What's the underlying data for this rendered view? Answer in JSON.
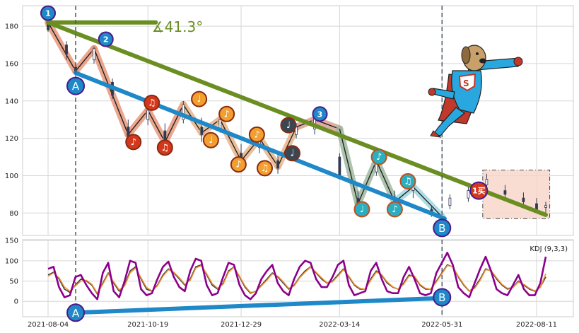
{
  "chart_data": [
    {
      "type": "candlestick",
      "ylim": [
        68,
        191
      ],
      "y_ticks": [
        80,
        100,
        120,
        140,
        160,
        180
      ],
      "grid": true,
      "candles": [
        {
          "date": "2021-08-04",
          "open": 181,
          "high": 183,
          "low": 177,
          "close": 178
        },
        {
          "date": "2021-08-18",
          "open": 170,
          "high": 172,
          "low": 162,
          "close": 165
        },
        {
          "date": "2021-08-25",
          "open": 158,
          "high": 160,
          "low": 153,
          "close": 155
        },
        {
          "date": "2021-09-08",
          "open": 162,
          "high": 169,
          "low": 160,
          "close": 168
        },
        {
          "date": "2021-09-22",
          "open": 150,
          "high": 152,
          "low": 141,
          "close": 143
        },
        {
          "date": "2021-10-04",
          "open": 126,
          "high": 130,
          "low": 118,
          "close": 121
        },
        {
          "date": "2021-10-19",
          "open": 130,
          "high": 138,
          "low": 127,
          "close": 135
        },
        {
          "date": "2021-11-01",
          "open": 124,
          "high": 128,
          "low": 115,
          "close": 118
        },
        {
          "date": "2021-11-15",
          "open": 130,
          "high": 140,
          "low": 128,
          "close": 138
        },
        {
          "date": "2021-11-29",
          "open": 126,
          "high": 131,
          "low": 118,
          "close": 122
        },
        {
          "date": "2021-12-13",
          "open": 125,
          "high": 133,
          "low": 123,
          "close": 130
        },
        {
          "date": "2021-12-29",
          "open": 112,
          "high": 117,
          "low": 104,
          "close": 107
        },
        {
          "date": "2022-01-12",
          "open": 115,
          "high": 122,
          "low": 112,
          "close": 120
        },
        {
          "date": "2022-01-26",
          "open": 108,
          "high": 111,
          "low": 101,
          "close": 104
        },
        {
          "date": "2022-02-09",
          "open": 122,
          "high": 128,
          "low": 120,
          "close": 126
        },
        {
          "date": "2022-02-23",
          "open": 125,
          "high": 134,
          "low": 122,
          "close": 132
        },
        {
          "date": "2022-03-14",
          "open": 110,
          "high": 112,
          "low": 98,
          "close": 100
        },
        {
          "date": "2022-03-28",
          "open": 88,
          "high": 92,
          "low": 82,
          "close": 84
        },
        {
          "date": "2022-04-11",
          "open": 102,
          "high": 110,
          "low": 100,
          "close": 108
        },
        {
          "date": "2022-04-25",
          "open": 88,
          "high": 92,
          "low": 82,
          "close": 85
        },
        {
          "date": "2022-05-09",
          "open": 92,
          "high": 96,
          "low": 88,
          "close": 94
        },
        {
          "date": "2022-05-23",
          "open": 82,
          "high": 84,
          "low": 78,
          "close": 79
        },
        {
          "date": "2022-06-06",
          "open": 84,
          "high": 90,
          "low": 82,
          "close": 88
        },
        {
          "date": "2022-06-20",
          "open": 88,
          "high": 94,
          "low": 86,
          "close": 92
        },
        {
          "date": "2022-07-04",
          "open": 95,
          "high": 101,
          "low": 93,
          "close": 98
        },
        {
          "date": "2022-07-18",
          "open": 92,
          "high": 95,
          "low": 88,
          "close": 90
        },
        {
          "date": "2022-08-01",
          "open": 88,
          "high": 91,
          "low": 84,
          "close": 86
        },
        {
          "date": "2022-08-11",
          "open": 85,
          "high": 88,
          "low": 80,
          "close": 82
        },
        {
          "date": "2022-08-18",
          "open": 83,
          "high": 86,
          "low": 79,
          "close": 84
        }
      ],
      "trendlines": [
        {
          "color": "#6b8e23",
          "points": [
            {
              "x": "2021-08-04",
              "y": 182
            },
            {
              "x": "2022-08-18",
              "y": 79
            }
          ]
        },
        {
          "color": "#6b8e23",
          "points": [
            {
              "x": "2021-08-04",
              "y": 182
            },
            {
              "x": "2021-10-25",
              "y": 182
            }
          ]
        },
        {
          "color": "#1e88c8",
          "points": [
            {
              "x": "2021-08-25",
              "y": 155
            },
            {
              "x": "2022-06-02",
              "y": 77
            }
          ]
        }
      ],
      "angle_label": "∡41.3°",
      "wave_path": [
        {
          "x": "2021-08-04",
          "y": 182
        },
        {
          "x": "2021-08-25",
          "y": 156
        },
        {
          "x": "2021-09-08",
          "y": 168
        },
        {
          "x": "2021-10-04",
          "y": 122
        },
        {
          "x": "2021-10-19",
          "y": 135
        },
        {
          "x": "2021-11-01",
          "y": 118
        },
        {
          "x": "2021-11-15",
          "y": 138
        },
        {
          "x": "2021-11-29",
          "y": 123
        },
        {
          "x": "2021-12-13",
          "y": 130
        },
        {
          "x": "2021-12-29",
          "y": 108
        },
        {
          "x": "2022-01-12",
          "y": 120
        },
        {
          "x": "2022-01-26",
          "y": 105
        },
        {
          "x": "2022-02-09",
          "y": 126
        },
        {
          "x": "2022-02-23",
          "y": 130
        },
        {
          "x": "2022-03-14",
          "y": 125
        },
        {
          "x": "2022-03-28",
          "y": 85
        },
        {
          "x": "2022-04-11",
          "y": 108
        },
        {
          "x": "2022-04-25",
          "y": 86
        },
        {
          "x": "2022-05-09",
          "y": 94
        },
        {
          "x": "2022-05-31",
          "y": 78
        }
      ],
      "wave_labels": [
        {
          "x": "2021-08-04",
          "y": 187,
          "text": "1"
        },
        {
          "x": "2021-09-17",
          "y": 173,
          "text": "2"
        },
        {
          "x": "2022-02-27",
          "y": 133,
          "text": "3"
        }
      ],
      "ab_labels": [
        {
          "x": "2021-08-25",
          "y": 148,
          "text": "A"
        },
        {
          "x": "2022-05-31",
          "y": 72,
          "text": "B"
        }
      ],
      "music_notes": [
        {
          "x": "2021-10-08",
          "y": 118,
          "text": "♪",
          "color": "#d4381c"
        },
        {
          "x": "2021-10-22",
          "y": 139,
          "text": "♫",
          "color": "#d4381c"
        },
        {
          "x": "2021-11-01",
          "y": 115,
          "text": "♫",
          "color": "#d4381c"
        },
        {
          "x": "2021-11-27",
          "y": 141,
          "text": "♩",
          "color": "#f29f2f"
        },
        {
          "x": "2021-12-06",
          "y": 119,
          "text": "♩",
          "color": "#f29f2f"
        },
        {
          "x": "2021-12-18",
          "y": 133,
          "text": "♪",
          "color": "#f29f2f"
        },
        {
          "x": "2021-12-27",
          "y": 106,
          "text": "♪",
          "color": "#f29f2f"
        },
        {
          "x": "2022-01-10",
          "y": 122,
          "text": "♪",
          "color": "#f29f2f"
        },
        {
          "x": "2022-01-16",
          "y": 104,
          "text": "♫",
          "color": "#f29f2f"
        },
        {
          "x": "2022-02-03",
          "y": 127,
          "text": "♩",
          "color": "#3a4652"
        },
        {
          "x": "2022-02-06",
          "y": 112,
          "text": "♩",
          "color": "#3a4652"
        },
        {
          "x": "2022-03-31",
          "y": 82,
          "text": "♩",
          "color": "#2aaec0"
        },
        {
          "x": "2022-04-13",
          "y": 110,
          "text": "♪",
          "color": "#2aaec0"
        },
        {
          "x": "2022-04-25",
          "y": 82,
          "text": "♪",
          "color": "#2aaec0"
        },
        {
          "x": "2022-05-05",
          "y": 97,
          "text": "♫",
          "color": "#2aaec0"
        }
      ],
      "buy_marker": {
        "x": "2022-06-28",
        "y": 92,
        "text": "1买",
        "color": "#d4381c"
      },
      "highlight_box": {
        "x0": "2022-07-01",
        "x1": "2022-08-21",
        "y0": 77,
        "y1": 103
      },
      "vlines": [
        "2021-08-25",
        "2022-05-31"
      ]
    },
    {
      "type": "line",
      "title": "KDJ (9,3,3)",
      "ylim": [
        -38,
        152
      ],
      "y_ticks": [
        0,
        50,
        100,
        150
      ],
      "grid": true,
      "x_ticks": [
        "2021-08-04",
        "2021-10-19",
        "2021-12-29",
        "2022-03-14",
        "2022-05-31",
        "2022-08-11"
      ],
      "series": [
        {
          "color": "#3c3c3c",
          "values": [
            65,
            72,
            55,
            30,
            22,
            40,
            55,
            50,
            40,
            18,
            45,
            70,
            45,
            25,
            40,
            75,
            85,
            55,
            30,
            25,
            40,
            65,
            80,
            70,
            55,
            40,
            55,
            85,
            90,
            65,
            40,
            30,
            45,
            75,
            85,
            60,
            35,
            20,
            25,
            40,
            55,
            70,
            60,
            45,
            30,
            40,
            60,
            75,
            85,
            70,
            55,
            45,
            50,
            65,
            80,
            60,
            40,
            30,
            30,
            55,
            75,
            65,
            45,
            35,
            30,
            45,
            65,
            60,
            40,
            30,
            30,
            50,
            70,
            90,
            85,
            60,
            40,
            25,
            35,
            55,
            80,
            75,
            55,
            40,
            30,
            35,
            50,
            40,
            30,
            25,
            35,
            60
          ]
        },
        {
          "color": "#f0902f",
          "values": [
            62,
            70,
            58,
            35,
            25,
            38,
            50,
            52,
            42,
            20,
            42,
            68,
            48,
            28,
            38,
            70,
            82,
            58,
            34,
            26,
            38,
            62,
            78,
            72,
            58,
            42,
            52,
            82,
            88,
            68,
            44,
            32,
            42,
            72,
            84,
            62,
            38,
            22,
            24,
            38,
            52,
            68,
            62,
            48,
            32,
            38,
            58,
            72,
            84,
            72,
            58,
            46,
            48,
            62,
            78,
            62,
            42,
            32,
            30,
            52,
            72,
            66,
            48,
            36,
            30,
            42,
            62,
            62,
            42,
            32,
            30,
            48,
            68,
            88,
            86,
            62,
            42,
            26,
            32,
            52,
            78,
            76,
            58,
            42,
            32,
            34,
            48,
            42,
            32,
            26,
            34,
            68
          ]
        },
        {
          "color": "#8b008b",
          "values": [
            80,
            85,
            35,
            10,
            15,
            60,
            65,
            40,
            20,
            5,
            70,
            95,
            25,
            10,
            50,
            100,
            95,
            30,
            15,
            20,
            55,
            85,
            98,
            60,
            35,
            25,
            75,
            105,
            100,
            40,
            15,
            20,
            60,
            95,
            90,
            40,
            15,
            5,
            20,
            55,
            75,
            90,
            45,
            25,
            15,
            55,
            85,
            100,
            95,
            55,
            35,
            35,
            60,
            90,
            100,
            40,
            15,
            20,
            25,
            75,
            95,
            55,
            25,
            20,
            20,
            60,
            85,
            55,
            20,
            15,
            20,
            70,
            95,
            120,
            90,
            35,
            20,
            10,
            45,
            80,
            110,
            75,
            30,
            20,
            15,
            40,
            65,
            30,
            15,
            15,
            45,
            110
          ]
        }
      ],
      "ab_labels": [
        {
          "x": "2021-08-25",
          "y": -28,
          "text": "A"
        },
        {
          "x": "2022-05-31",
          "y": 10,
          "text": "B"
        }
      ],
      "trendline": {
        "color": "#1e88c8",
        "points": [
          {
            "x": "2021-08-25",
            "y": -28
          },
          {
            "x": "2022-05-31",
            "y": 8
          }
        ]
      },
      "vlines": [
        "2021-08-25",
        "2022-05-31"
      ]
    }
  ]
}
